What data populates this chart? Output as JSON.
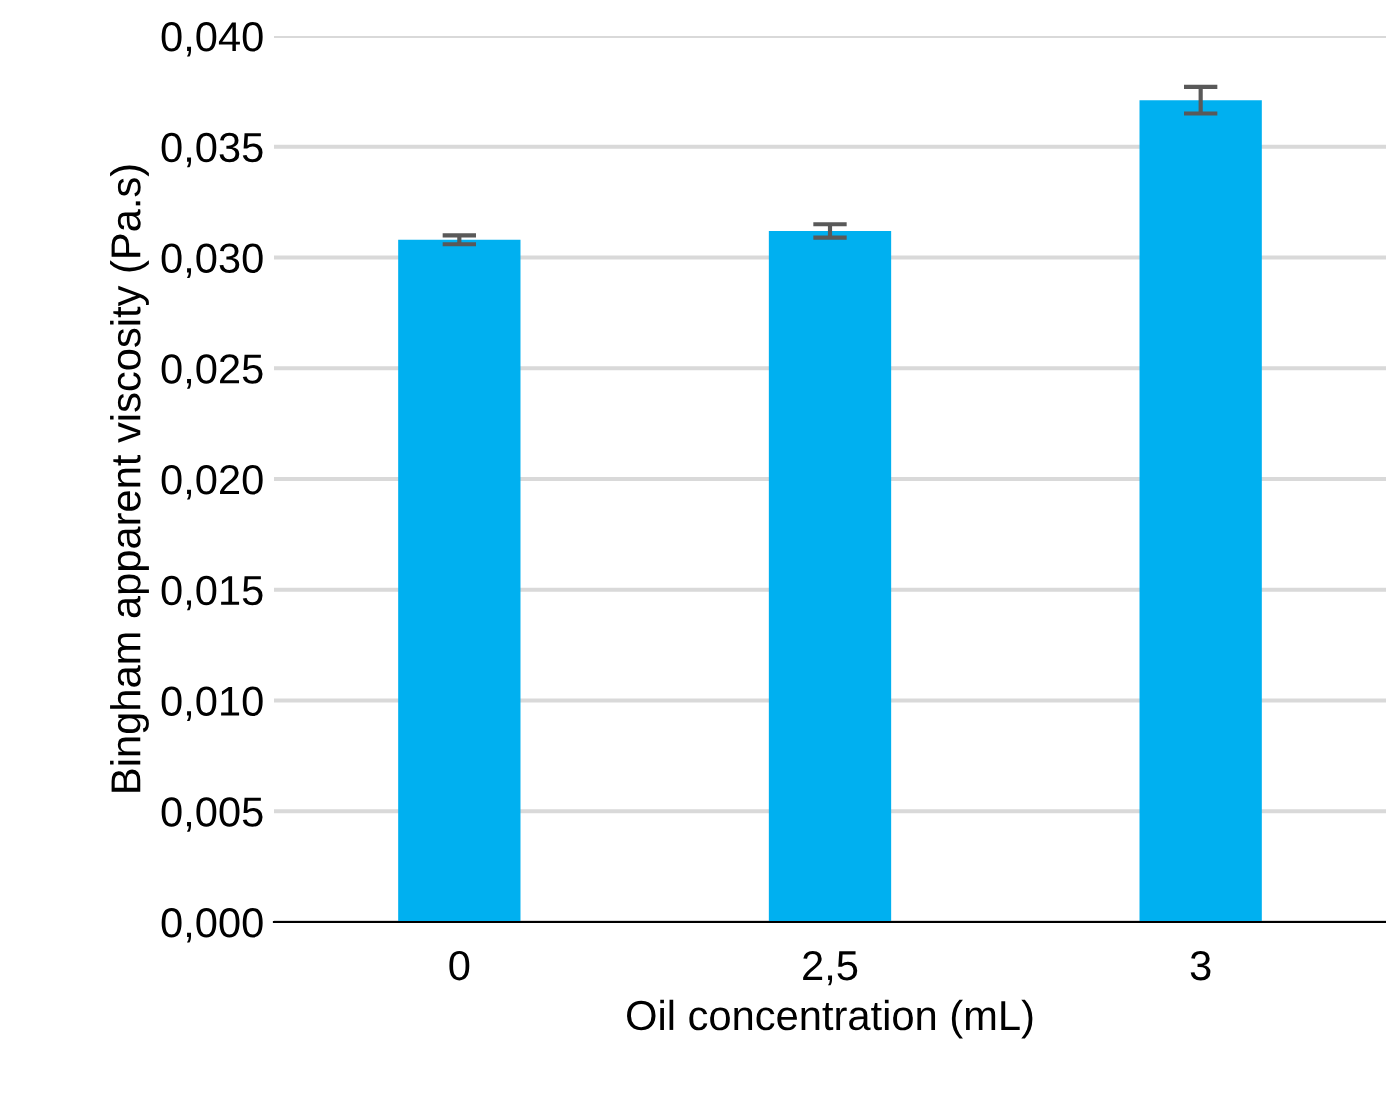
{
  "chart_data": {
    "type": "bar",
    "xlabel": "Oil concentration (mL)",
    "ylabel": "Bingham apparent viscosity (Pa.s)",
    "categories": [
      "0",
      "2,5",
      "3"
    ],
    "values": [
      0.0308,
      0.0312,
      0.0371
    ],
    "errors": [
      0.0002,
      0.0003,
      0.0006
    ],
    "color": "#00b0f0",
    "ylim": [
      0,
      0.04
    ],
    "yticks": [
      {
        "value": 0,
        "label": "0,000"
      },
      {
        "value": 0.005,
        "label": "0,005"
      },
      {
        "value": 0.01,
        "label": "0,010"
      },
      {
        "value": 0.015,
        "label": "0,015"
      },
      {
        "value": 0.02,
        "label": "0,020"
      },
      {
        "value": 0.025,
        "label": "0,025"
      },
      {
        "value": 0.03,
        "label": "0,030"
      },
      {
        "value": 0.035,
        "label": "0,035"
      },
      {
        "value": 0.04,
        "label": "0,040"
      }
    ],
    "grid": "y"
  }
}
